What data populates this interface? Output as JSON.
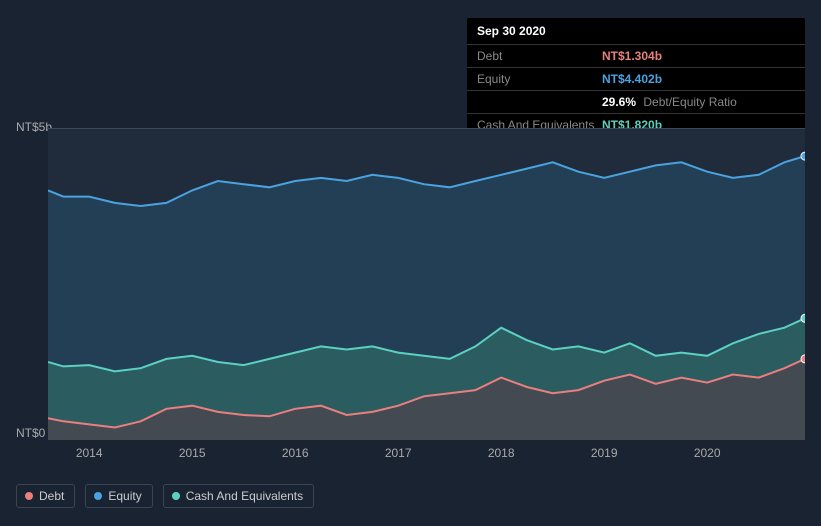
{
  "info_box": {
    "date": "Sep 30 2020",
    "rows": {
      "debt": {
        "label": "Debt",
        "value": "NT$1.304b",
        "color": "#e97f7f"
      },
      "equity": {
        "label": "Equity",
        "value": "NT$4.402b",
        "color": "#4aa3e0"
      },
      "ratio": {
        "pct": "29.6%",
        "label": "Debt/Equity Ratio"
      },
      "cash": {
        "label": "Cash And Equivalents",
        "value": "NT$1.820b",
        "color": "#5cd1c1"
      }
    }
  },
  "chart": {
    "type": "area",
    "background": "#1a2332",
    "plot_fill": "#202c3c",
    "gridline_color": "#5a6575",
    "y_labels": {
      "top": "NT$5b",
      "bottom": "NT$0"
    },
    "xlim": [
      2013.6,
      2020.95
    ],
    "ylim": [
      0,
      5
    ],
    "x_ticks_years": [
      2014,
      2015,
      2016,
      2017,
      2018,
      2019,
      2020
    ],
    "x_tick_labels": [
      "2014",
      "2015",
      "2016",
      "2017",
      "2018",
      "2019",
      "2020"
    ],
    "series": {
      "equity": {
        "name": "Equity",
        "stroke": "#4aa3e0",
        "fill": "#24455f",
        "fill_opacity": 0.75,
        "stroke_width": 2,
        "x": [
          2013.6,
          2013.75,
          2014.0,
          2014.25,
          2014.5,
          2014.75,
          2015.0,
          2015.25,
          2015.5,
          2015.75,
          2016.0,
          2016.25,
          2016.5,
          2016.75,
          2017.0,
          2017.25,
          2017.5,
          2017.75,
          2018.0,
          2018.25,
          2018.5,
          2018.75,
          2019.0,
          2019.25,
          2019.5,
          2019.75,
          2020.0,
          2020.25,
          2020.5,
          2020.75,
          2020.95
        ],
        "y": [
          4.0,
          3.9,
          3.9,
          3.8,
          3.75,
          3.8,
          4.0,
          4.15,
          4.1,
          4.05,
          4.15,
          4.2,
          4.15,
          4.25,
          4.2,
          4.1,
          4.05,
          4.15,
          4.25,
          4.35,
          4.45,
          4.3,
          4.2,
          4.3,
          4.4,
          4.45,
          4.3,
          4.2,
          4.25,
          4.45,
          4.55
        ]
      },
      "cash": {
        "name": "Cash And Equivalents",
        "stroke": "#5cd1c1",
        "fill": "#2e6b66",
        "fill_opacity": 0.65,
        "stroke_width": 2,
        "x": [
          2013.6,
          2013.75,
          2014.0,
          2014.25,
          2014.5,
          2014.75,
          2015.0,
          2015.25,
          2015.5,
          2015.75,
          2016.0,
          2016.25,
          2016.5,
          2016.75,
          2017.0,
          2017.25,
          2017.5,
          2017.75,
          2018.0,
          2018.25,
          2018.5,
          2018.75,
          2019.0,
          2019.25,
          2019.5,
          2019.75,
          2020.0,
          2020.25,
          2020.5,
          2020.75,
          2020.95
        ],
        "y": [
          1.25,
          1.18,
          1.2,
          1.1,
          1.15,
          1.3,
          1.35,
          1.25,
          1.2,
          1.3,
          1.4,
          1.5,
          1.45,
          1.5,
          1.4,
          1.35,
          1.3,
          1.5,
          1.8,
          1.6,
          1.45,
          1.5,
          1.4,
          1.55,
          1.35,
          1.4,
          1.35,
          1.55,
          1.7,
          1.8,
          1.95
        ]
      },
      "debt": {
        "name": "Debt",
        "stroke": "#e97f7f",
        "fill": "#5a3d46",
        "fill_opacity": 0.55,
        "stroke_width": 2,
        "x": [
          2013.6,
          2013.75,
          2014.0,
          2014.25,
          2014.5,
          2014.75,
          2015.0,
          2015.25,
          2015.5,
          2015.75,
          2016.0,
          2016.25,
          2016.5,
          2016.75,
          2017.0,
          2017.25,
          2017.5,
          2017.75,
          2018.0,
          2018.25,
          2018.5,
          2018.75,
          2019.0,
          2019.25,
          2019.5,
          2019.75,
          2020.0,
          2020.25,
          2020.5,
          2020.75,
          2020.95
        ],
        "y": [
          0.35,
          0.3,
          0.25,
          0.2,
          0.3,
          0.5,
          0.55,
          0.45,
          0.4,
          0.38,
          0.5,
          0.55,
          0.4,
          0.45,
          0.55,
          0.7,
          0.75,
          0.8,
          1.0,
          0.85,
          0.75,
          0.8,
          0.95,
          1.05,
          0.9,
          1.0,
          0.92,
          1.05,
          1.0,
          1.15,
          1.3
        ]
      }
    },
    "end_markers": {
      "equity": {
        "x": 2020.95,
        "y": 4.55,
        "color": "#4aa3e0"
      },
      "cash": {
        "x": 2020.95,
        "y": 1.95,
        "color": "#5cd1c1"
      },
      "debt": {
        "x": 2020.95,
        "y": 1.3,
        "color": "#e97f7f"
      }
    }
  },
  "legend": {
    "border_color": "#3a4452",
    "text_color": "#cccccc",
    "items": [
      {
        "key": "debt",
        "label": "Debt",
        "color": "#e97f7f"
      },
      {
        "key": "equity",
        "label": "Equity",
        "color": "#4aa3e0"
      },
      {
        "key": "cash",
        "label": "Cash And Equivalents",
        "color": "#5cd1c1"
      }
    ]
  }
}
